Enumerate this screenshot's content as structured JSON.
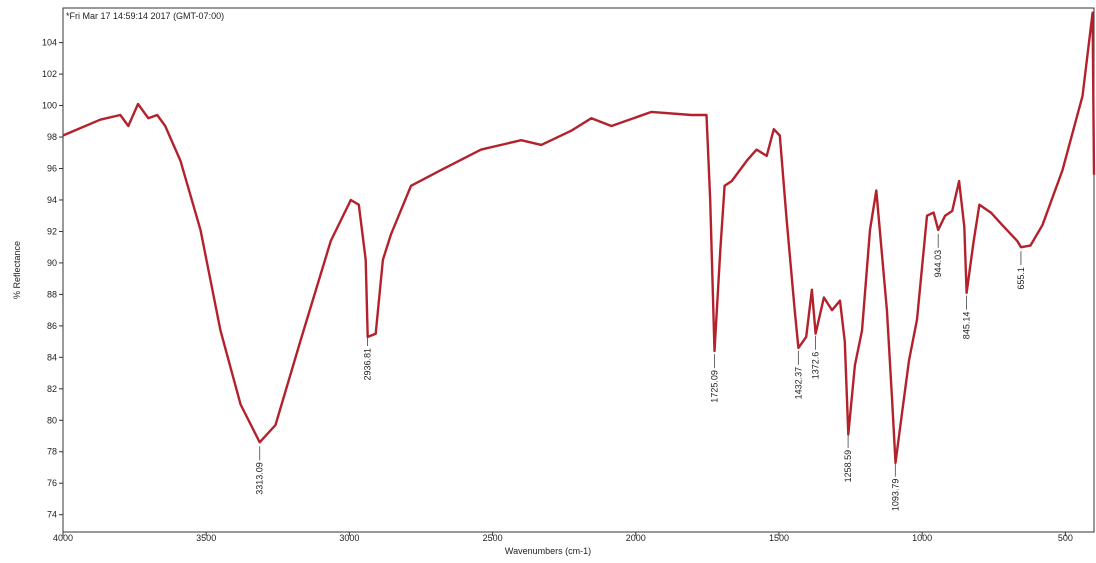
{
  "chart_data": {
    "type": "line",
    "subtitle": "*Fri Mar 17 14:59:14 2017 (GMT-07:00)",
    "x_label": "Wavenumbers (cm-1)",
    "y_label": "% Reflectance",
    "xlim": [
      4000,
      400
    ],
    "ylim": [
      72.9,
      106.2
    ],
    "xticks": [
      4000,
      3500,
      3000,
      2500,
      2000,
      1500,
      1000,
      500
    ],
    "yticks": [
      74,
      76,
      78,
      80,
      82,
      84,
      86,
      88,
      90,
      92,
      94,
      96,
      98,
      100,
      102,
      104
    ],
    "series": [
      {
        "color": "#b3222c",
        "x": [
          4000,
          3870,
          3800,
          3772,
          3738,
          3702,
          3671,
          3643,
          3590,
          3520,
          3450,
          3380,
          3313,
          3258,
          3170,
          3065,
          2995,
          2967,
          2943,
          2936,
          2908,
          2883,
          2855,
          2785,
          2680,
          2540,
          2400,
          2330,
          2225,
          2155,
          2085,
          1945,
          1805,
          1753,
          1740,
          1725,
          1705,
          1690,
          1665,
          1612,
          1578,
          1543,
          1518,
          1497,
          1473,
          1445,
          1432,
          1405,
          1385,
          1372,
          1343,
          1315,
          1287,
          1270,
          1258,
          1235,
          1210,
          1182,
          1160,
          1123,
          1105,
          1093,
          1070,
          1046,
          1018,
          983,
          960,
          944,
          920,
          895,
          871,
          853,
          845,
          820,
          800,
          760,
          720,
          668,
          655,
          622,
          580,
          510,
          440,
          405,
          400
        ],
        "values": [
          98.1,
          99.1,
          99.4,
          98.7,
          100.1,
          99.2,
          99.4,
          98.7,
          96.5,
          92.1,
          85.7,
          81.0,
          78.6,
          79.7,
          85.1,
          91.4,
          94.0,
          93.7,
          90.2,
          85.3,
          85.5,
          90.2,
          91.8,
          94.9,
          95.9,
          97.2,
          97.8,
          97.5,
          98.4,
          99.2,
          98.7,
          99.6,
          99.4,
          99.4,
          94.0,
          84.4,
          90.8,
          94.9,
          95.2,
          96.5,
          97.2,
          96.8,
          98.5,
          98.1,
          92.7,
          87.0,
          84.6,
          85.3,
          88.3,
          85.5,
          87.8,
          87.0,
          87.6,
          85.0,
          79.1,
          83.5,
          85.7,
          92.1,
          94.6,
          87.0,
          81.3,
          77.3,
          80.5,
          83.8,
          86.4,
          93.0,
          93.2,
          92.1,
          93.0,
          93.3,
          95.2,
          92.3,
          88.1,
          91.4,
          93.7,
          93.2,
          92.4,
          91.4,
          91.0,
          91.1,
          92.4,
          95.9,
          100.6,
          105.9,
          95.6
        ]
      }
    ],
    "peaks": [
      3313.09,
      2936.81,
      1725.09,
      1432.37,
      1372.6,
      1258.59,
      1093.79,
      944.03,
      845.14,
      655.1
    ]
  }
}
